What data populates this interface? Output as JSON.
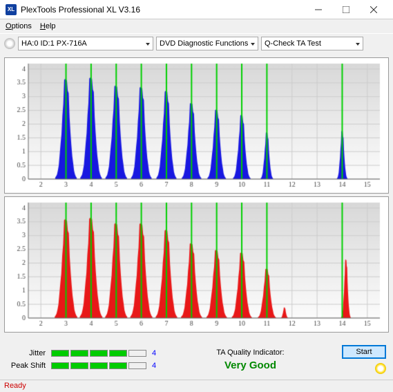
{
  "window": {
    "title": "PlexTools Professional XL V3.16",
    "icon_text": "XL"
  },
  "menu": {
    "options": "Options",
    "help": "Help"
  },
  "toolbar": {
    "drive": "HA:0 ID:1  PX-716A",
    "functions": "DVD Diagnostic Functions",
    "test": "Q-Check TA Test"
  },
  "chart": {
    "x_ticks": [
      2,
      3,
      4,
      5,
      6,
      7,
      8,
      9,
      10,
      11,
      12,
      13,
      14,
      15
    ],
    "y_ticks": [
      0,
      0.5,
      1,
      1.5,
      2,
      2.5,
      3,
      3.5,
      4
    ],
    "x_min": 1.5,
    "x_max": 15.5,
    "y_min": 0,
    "y_max": 4.2,
    "grid_color": "#cccccc",
    "axis_color": "#666666",
    "tick_font": 10,
    "vlines": [
      3,
      4,
      5,
      6,
      7,
      8,
      9,
      10,
      11,
      14
    ],
    "vline_color": "#00d000",
    "series1": {
      "color": "#1818e0",
      "peaks": [
        {
          "c": 3,
          "h": 3.75,
          "w": 0.86
        },
        {
          "c": 4,
          "h": 3.8,
          "w": 0.86
        },
        {
          "c": 5,
          "h": 3.5,
          "w": 0.86
        },
        {
          "c": 6,
          "h": 3.45,
          "w": 0.82
        },
        {
          "c": 7,
          "h": 3.3,
          "w": 0.8
        },
        {
          "c": 8,
          "h": 2.85,
          "w": 0.78
        },
        {
          "c": 9,
          "h": 2.6,
          "w": 0.74
        },
        {
          "c": 10,
          "h": 2.4,
          "w": 0.7
        },
        {
          "c": 11,
          "h": 1.75,
          "w": 0.5
        },
        {
          "c": 14,
          "h": 1.8,
          "w": 0.42
        }
      ]
    },
    "series2": {
      "color": "#e81818",
      "peaks": [
        {
          "c": 3,
          "h": 3.7,
          "w": 0.9
        },
        {
          "c": 4,
          "h": 3.75,
          "w": 0.9
        },
        {
          "c": 5,
          "h": 3.55,
          "w": 0.88
        },
        {
          "c": 6,
          "h": 3.55,
          "w": 0.88
        },
        {
          "c": 7,
          "h": 3.3,
          "w": 0.86
        },
        {
          "c": 8,
          "h": 2.8,
          "w": 0.84
        },
        {
          "c": 9,
          "h": 2.55,
          "w": 0.82
        },
        {
          "c": 10,
          "h": 2.45,
          "w": 0.8
        },
        {
          "c": 11,
          "h": 1.85,
          "w": 0.72
        },
        {
          "c": 11.7,
          "h": 0.4,
          "w": 0.3
        },
        {
          "c": 14.15,
          "h": 2.2,
          "w": 0.38
        }
      ]
    }
  },
  "footer": {
    "jitter_label": "Jitter",
    "jitter_val": "4",
    "jitter_bars": 4,
    "peak_label": "Peak Shift",
    "peak_val": "4",
    "peak_bars": 4,
    "quality_label": "TA Quality Indicator:",
    "quality_val": "Very Good",
    "start_btn": "Start"
  },
  "status": "Ready"
}
